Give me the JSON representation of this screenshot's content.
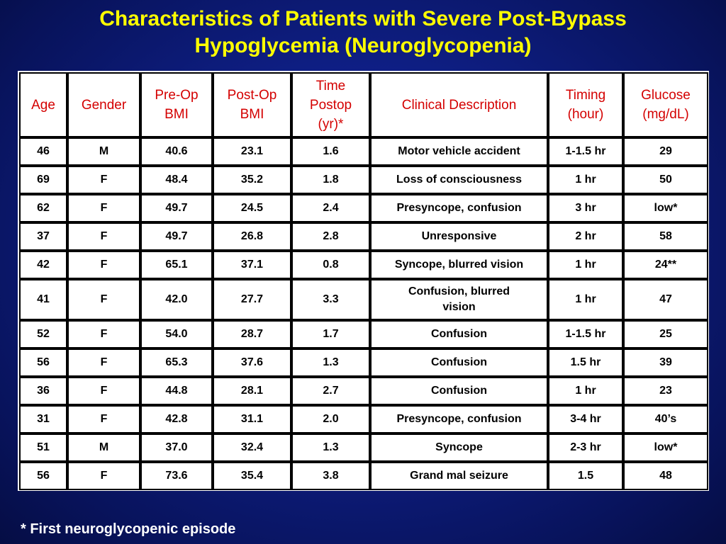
{
  "title": {
    "line1": "Characteristics of Patients with Severe Post-Bypass",
    "line2": "Hypoglycemia (Neuroglycopenia)"
  },
  "table": {
    "headers": {
      "age": "Age",
      "gender": "Gender",
      "preop": "Pre-Op BMI",
      "postop": "Post-Op BMI",
      "time": "Time Postop (yr)*",
      "clinical": "Clinical Description",
      "timing": "Timing (hour)",
      "glucose": "Glucose (mg/dL)"
    },
    "rows": [
      [
        "46",
        "M",
        "40.6",
        "23.1",
        "1.6",
        "Motor vehicle accident",
        "1-1.5 hr",
        "29"
      ],
      [
        "69",
        "F",
        "48.4",
        "35.2",
        "1.8",
        "Loss of consciousness",
        "1 hr",
        "50"
      ],
      [
        "62",
        "F",
        "49.7",
        "24.5",
        "2.4",
        "Presyncope, confusion",
        "3 hr",
        "low*"
      ],
      [
        "37",
        "F",
        "49.7",
        "26.8",
        "2.8",
        "Unresponsive",
        "2 hr",
        "58"
      ],
      [
        "42",
        "F",
        "65.1",
        "37.1",
        "0.8",
        "Syncope, blurred vision",
        "1 hr",
        "24**"
      ],
      [
        "41",
        "F",
        "42.0",
        "27.7",
        "3.3",
        "Confusion, blurred vision",
        "1 hr",
        "47"
      ],
      [
        "52",
        "F",
        "54.0",
        "28.7",
        "1.7",
        "Confusion",
        "1-1.5 hr",
        "25"
      ],
      [
        "56",
        "F",
        "65.3",
        "37.6",
        "1.3",
        "Confusion",
        "1.5 hr",
        "39"
      ],
      [
        "36",
        "F",
        "44.8",
        "28.1",
        "2.7",
        "Confusion",
        "1 hr",
        "23"
      ],
      [
        "31",
        "F",
        "42.8",
        "31.1",
        "2.0",
        "Presyncope, confusion",
        "3-4 hr",
        "40’s"
      ],
      [
        "51",
        "M",
        "37.0",
        "32.4",
        "1.3",
        "Syncope",
        "2-3 hr",
        "low*"
      ],
      [
        "56",
        "F",
        "73.6",
        "35.4",
        "3.8",
        "Grand mal seizure",
        "1.5",
        "48"
      ]
    ]
  },
  "footnote": "* First neuroglycopenic episode",
  "colors": {
    "title": "#ffff00",
    "header_text": "#d40000",
    "background": "#0f1f86"
  }
}
